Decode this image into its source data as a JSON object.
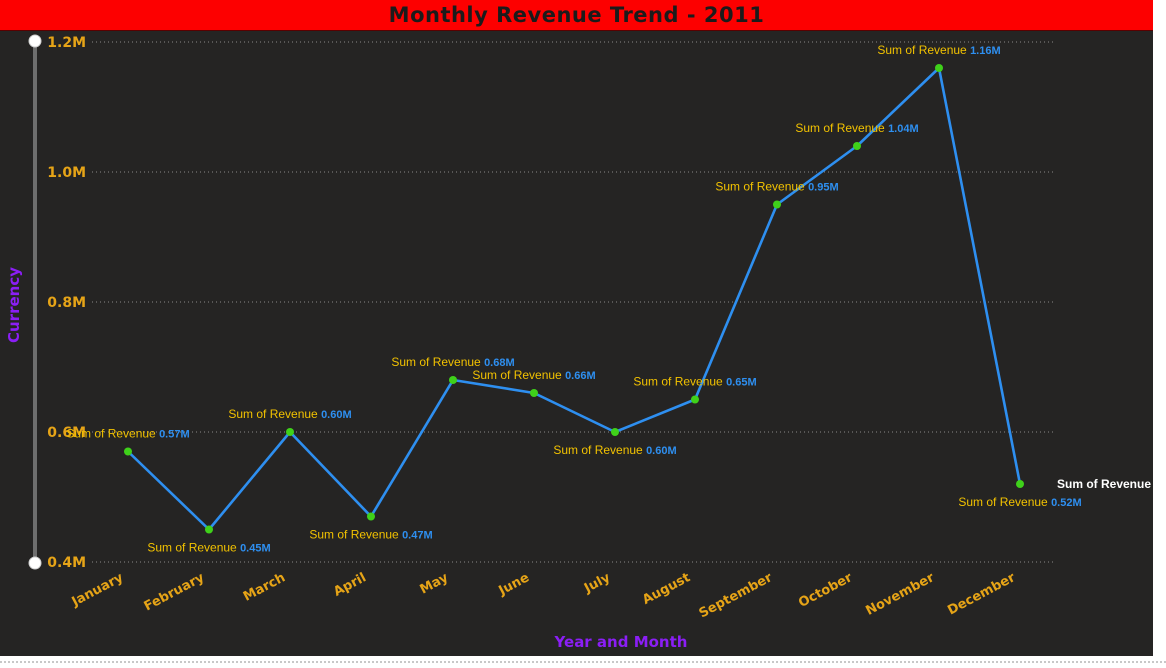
{
  "chart_data": {
    "type": "line",
    "title": "Monthly Revenue Trend - 2011",
    "xlabel": "Year and Month",
    "ylabel": "Currency",
    "categories": [
      "January",
      "February",
      "March",
      "April",
      "May",
      "June",
      "July",
      "August",
      "September",
      "October",
      "November",
      "December"
    ],
    "series": [
      {
        "name": "Sum of Revenue",
        "values": [
          0.57,
          0.45,
          0.6,
          0.47,
          0.68,
          0.66,
          0.6,
          0.65,
          0.95,
          1.04,
          1.16,
          0.52
        ],
        "value_labels": [
          "0.57M",
          "0.45M",
          "0.60M",
          "0.47M",
          "0.68M",
          "0.66M",
          "0.60M",
          "0.65M",
          "0.95M",
          "1.04M",
          "1.16M",
          "0.52M"
        ]
      }
    ],
    "yticks": [
      0.4,
      0.6,
      0.8,
      1.0,
      1.2
    ],
    "ytick_labels": [
      "0.4M",
      "0.6M",
      "0.8M",
      "1.0M",
      "1.2M"
    ],
    "ylim": [
      0.4,
      1.2
    ],
    "grid": true,
    "legend": "none",
    "edge_label": "Sum of Revenue",
    "colors": {
      "line": "#2e8ff0",
      "marker": "#3fd11a",
      "title_bg": "#fd0000",
      "axis_label": "#8b1ef5",
      "tick": "#e6a417",
      "label_name": "#f2c200",
      "label_value": "#2e8ff0"
    }
  }
}
